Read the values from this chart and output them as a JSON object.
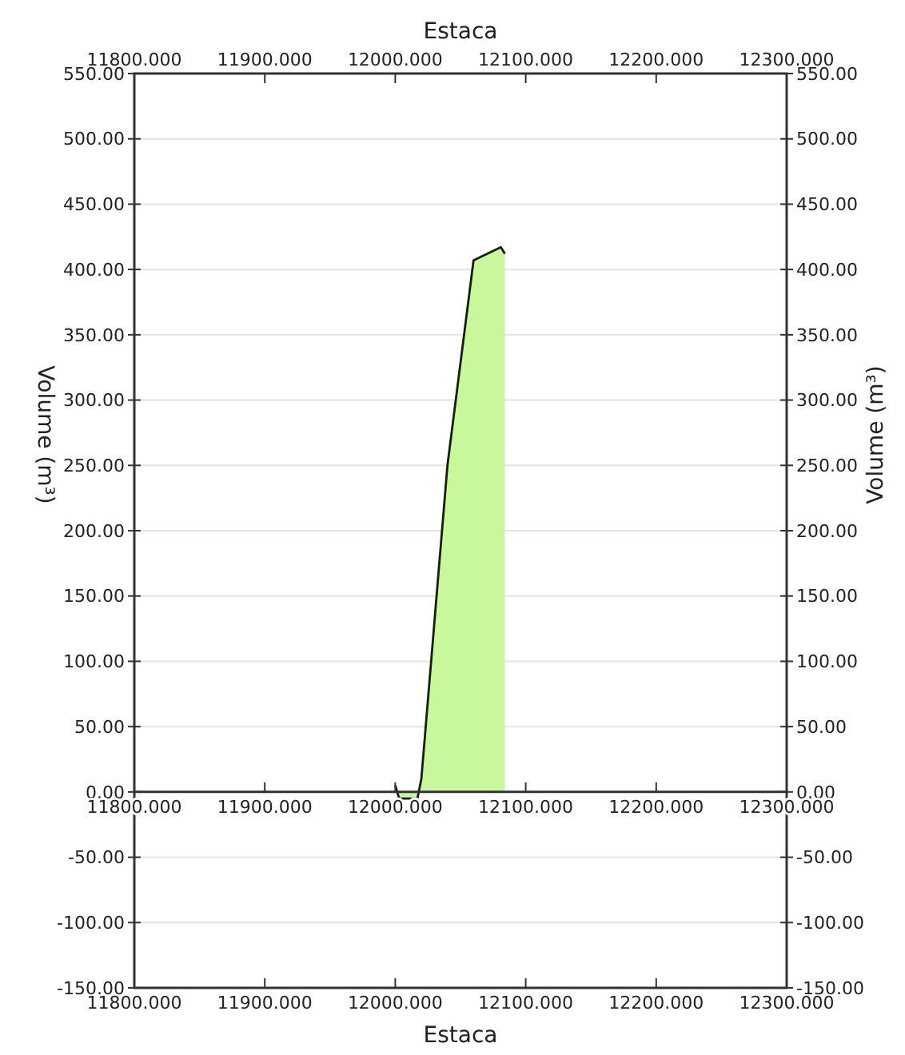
{
  "chart_data": {
    "type": "area",
    "xlabel": "Estaca",
    "x2label": "Estaca",
    "ylabel": "Volume (m³)",
    "y2label": "Volume (m³)",
    "series": [
      {
        "color": "#c8f79c",
        "x": [
          12000,
          12003,
          12017,
          12020,
          12040,
          12060,
          12081,
          12084
        ],
        "values": [
          5,
          -5,
          -5,
          10,
          250,
          407,
          417,
          412
        ]
      }
    ],
    "xlim": [
      11800,
      12300
    ],
    "x2lim": [
      11800,
      12300
    ],
    "xticks": [
      {
        "value": 11800,
        "label": "11800.000"
      },
      {
        "value": 11900,
        "label": "11900.000"
      },
      {
        "value": 12000,
        "label": "12000.000"
      },
      {
        "value": 12100,
        "label": "12100.000"
      },
      {
        "value": 12200,
        "label": "12200.000"
      },
      {
        "value": 12300,
        "label": "12300.000"
      }
    ],
    "x2ticks": [
      {
        "value": 11800,
        "label": "11800.000"
      },
      {
        "value": 11900,
        "label": "11900.000"
      },
      {
        "value": 12000,
        "label": "12000.000"
      },
      {
        "value": 12100,
        "label": "12100.000"
      },
      {
        "value": 12200,
        "label": "12200.000"
      },
      {
        "value": 12300,
        "label": "12300.000"
      }
    ],
    "ylim": [
      -150,
      550
    ],
    "y2lim": [
      -150,
      550
    ],
    "yticks": [
      {
        "value": -150,
        "label": "-150.00"
      },
      {
        "value": -100,
        "label": "-100.00"
      },
      {
        "value": -50,
        "label": "-50.00"
      },
      {
        "value": 0,
        "label": "0.00"
      },
      {
        "value": 50,
        "label": "50.00"
      },
      {
        "value": 100,
        "label": "100.00"
      },
      {
        "value": 150,
        "label": "150.00"
      },
      {
        "value": 200,
        "label": "200.00"
      },
      {
        "value": 250,
        "label": "250.00"
      },
      {
        "value": 300,
        "label": "300.00"
      },
      {
        "value": 350,
        "label": "350.00"
      },
      {
        "value": 400,
        "label": "400.00"
      },
      {
        "value": 450,
        "label": "450.00"
      },
      {
        "value": 500,
        "label": "500.00"
      },
      {
        "value": 550,
        "label": "550.00"
      }
    ],
    "y2ticks": [
      {
        "value": -150,
        "label": "-150.00"
      },
      {
        "value": -100,
        "label": "-100.00"
      },
      {
        "value": -50,
        "label": "-50.00"
      },
      {
        "value": 0,
        "label": "0.00"
      },
      {
        "value": 50,
        "label": "50.00"
      },
      {
        "value": 100,
        "label": "100.00"
      },
      {
        "value": 150,
        "label": "150.00"
      },
      {
        "value": 200,
        "label": "200.00"
      },
      {
        "value": 250,
        "label": "250.00"
      },
      {
        "value": 300,
        "label": "300.00"
      },
      {
        "value": 350,
        "label": "350.00"
      },
      {
        "value": 400,
        "label": "400.00"
      },
      {
        "value": 450,
        "label": "450.00"
      },
      {
        "value": 500,
        "label": "500.00"
      },
      {
        "value": 550,
        "label": "550.00"
      }
    ],
    "grid": "y"
  }
}
